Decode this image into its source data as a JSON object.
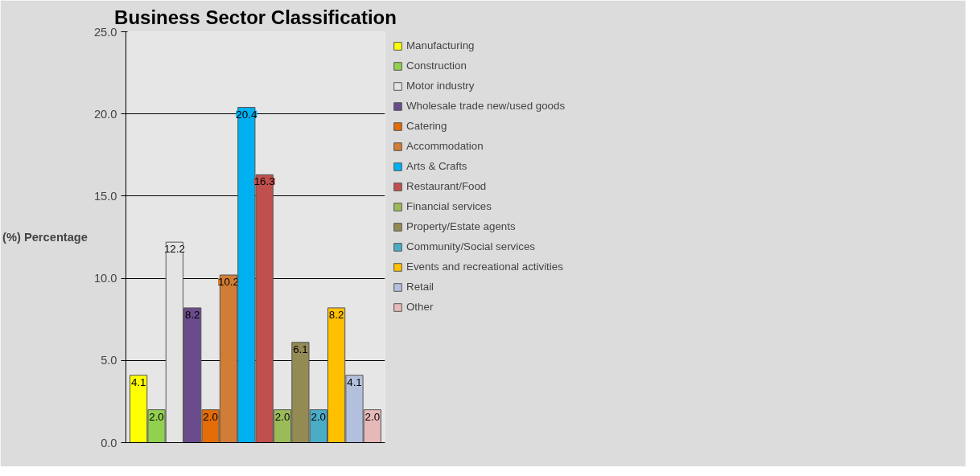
{
  "chart_data": {
    "type": "bar",
    "title": "Business Sector Classification",
    "ylabel": "(%) Percentage",
    "categories": [
      null,
      null,
      null,
      null,
      null,
      null,
      null,
      null,
      null,
      null,
      null,
      null,
      null,
      null
    ],
    "series": [
      {
        "name": "Manufacturing",
        "color": "#ffff00",
        "values": [
          4.1,
          null,
          null,
          null,
          null,
          null,
          null,
          null,
          null,
          null,
          null,
          null,
          null,
          null
        ],
        "value_labels": [
          "4.1",
          null,
          null,
          null,
          null,
          null,
          null,
          null,
          null,
          null,
          null,
          null,
          null,
          null
        ]
      },
      {
        "name": "Construction",
        "color": "#92d050",
        "values": [
          null,
          2.0,
          null,
          null,
          null,
          null,
          null,
          null,
          null,
          null,
          null,
          null,
          null,
          null
        ],
        "value_labels": [
          null,
          "2.0",
          null,
          null,
          null,
          null,
          null,
          null,
          null,
          null,
          null,
          null,
          null,
          null
        ]
      },
      {
        "name": "Motor industry",
        "color": "#e4e4e4",
        "values": [
          null,
          null,
          12.2,
          null,
          null,
          null,
          null,
          null,
          null,
          null,
          null,
          null,
          null,
          null
        ],
        "value_labels": [
          null,
          null,
          "12.2",
          null,
          null,
          null,
          null,
          null,
          null,
          null,
          null,
          null,
          null,
          null
        ]
      },
      {
        "name": "Wholesale trade new/used goods",
        "color": "#6a4c8c",
        "values": [
          null,
          null,
          null,
          8.2,
          null,
          null,
          null,
          null,
          null,
          null,
          null,
          null,
          null,
          null
        ],
        "value_labels": [
          null,
          null,
          null,
          "8.2",
          null,
          null,
          null,
          null,
          null,
          null,
          null,
          null,
          null,
          null
        ]
      },
      {
        "name": "Catering",
        "color": "#e36c09",
        "values": [
          null,
          null,
          null,
          null,
          2.0,
          null,
          null,
          null,
          null,
          null,
          null,
          null,
          null,
          null
        ],
        "value_labels": [
          null,
          null,
          null,
          null,
          "2.0",
          null,
          null,
          null,
          null,
          null,
          null,
          null,
          null,
          null
        ]
      },
      {
        "name": "Accommodation",
        "color": "#d27d35",
        "values": [
          null,
          null,
          null,
          null,
          null,
          10.2,
          null,
          null,
          null,
          null,
          null,
          null,
          null,
          null
        ],
        "value_labels": [
          null,
          null,
          null,
          null,
          null,
          "10.2",
          null,
          null,
          null,
          null,
          null,
          null,
          null,
          null
        ]
      },
      {
        "name": "Arts & Crafts",
        "color": "#00b0f0",
        "values": [
          null,
          null,
          null,
          null,
          null,
          null,
          20.4,
          null,
          null,
          null,
          null,
          null,
          null,
          null
        ],
        "value_labels": [
          null,
          null,
          null,
          null,
          null,
          null,
          "20.4",
          null,
          null,
          null,
          null,
          null,
          null,
          null
        ]
      },
      {
        "name": "Restaurant/Food",
        "color": "#c0504d",
        "values": [
          null,
          null,
          null,
          null,
          null,
          null,
          null,
          16.3,
          null,
          null,
          null,
          null,
          null,
          null
        ],
        "value_labels": [
          null,
          null,
          null,
          null,
          null,
          null,
          null,
          "16.3",
          null,
          null,
          null,
          null,
          null,
          null
        ]
      },
      {
        "name": "Financial services",
        "color": "#9bbb59",
        "values": [
          null,
          null,
          null,
          null,
          null,
          null,
          null,
          null,
          2.0,
          null,
          null,
          null,
          null,
          null
        ],
        "value_labels": [
          null,
          null,
          null,
          null,
          null,
          null,
          null,
          null,
          "2.0",
          null,
          null,
          null,
          null,
          null
        ]
      },
      {
        "name": "Property/Estate agents",
        "color": "#948a54",
        "values": [
          null,
          null,
          null,
          null,
          null,
          null,
          null,
          null,
          null,
          6.1,
          null,
          null,
          null,
          null
        ],
        "value_labels": [
          null,
          null,
          null,
          null,
          null,
          null,
          null,
          null,
          null,
          "6.1",
          null,
          null,
          null,
          null
        ]
      },
      {
        "name": "Community/Social services",
        "color": "#4bacc6",
        "values": [
          null,
          null,
          null,
          null,
          null,
          null,
          null,
          null,
          null,
          null,
          2.0,
          null,
          null,
          null
        ],
        "value_labels": [
          null,
          null,
          null,
          null,
          null,
          null,
          null,
          null,
          null,
          null,
          "2.0",
          null,
          null,
          null
        ]
      },
      {
        "name": "Events and recreational activities",
        "color": "#ffc000",
        "values": [
          null,
          null,
          null,
          null,
          null,
          null,
          null,
          null,
          null,
          null,
          null,
          8.2,
          null,
          null
        ],
        "value_labels": [
          null,
          null,
          null,
          null,
          null,
          null,
          null,
          null,
          null,
          null,
          null,
          "8.2",
          null,
          null
        ]
      },
      {
        "name": "Retail",
        "color": "#b3c0dd",
        "values": [
          null,
          null,
          null,
          null,
          null,
          null,
          null,
          null,
          null,
          null,
          null,
          null,
          4.1,
          null
        ],
        "value_labels": [
          null,
          null,
          null,
          null,
          null,
          null,
          null,
          null,
          null,
          null,
          null,
          null,
          "4.1",
          null
        ]
      },
      {
        "name": "Other",
        "color": "#e6b9b8",
        "values": [
          null,
          null,
          null,
          null,
          null,
          null,
          null,
          null,
          null,
          null,
          null,
          null,
          null,
          2.0
        ],
        "value_labels": [
          null,
          null,
          null,
          null,
          null,
          null,
          null,
          null,
          null,
          null,
          null,
          null,
          null,
          "2.0"
        ]
      }
    ],
    "ylim": [
      0,
      25
    ],
    "yticks": [
      {
        "value": 0,
        "label": "0.0"
      },
      {
        "value": 5,
        "label": "5.0"
      },
      {
        "value": 10,
        "label": "10.0"
      },
      {
        "value": 15,
        "label": "15.0"
      },
      {
        "value": 20,
        "label": "20.0"
      },
      {
        "value": 25,
        "label": "25.0"
      }
    ],
    "grid": "y",
    "legend": "right",
    "tick_labels": "y"
  }
}
